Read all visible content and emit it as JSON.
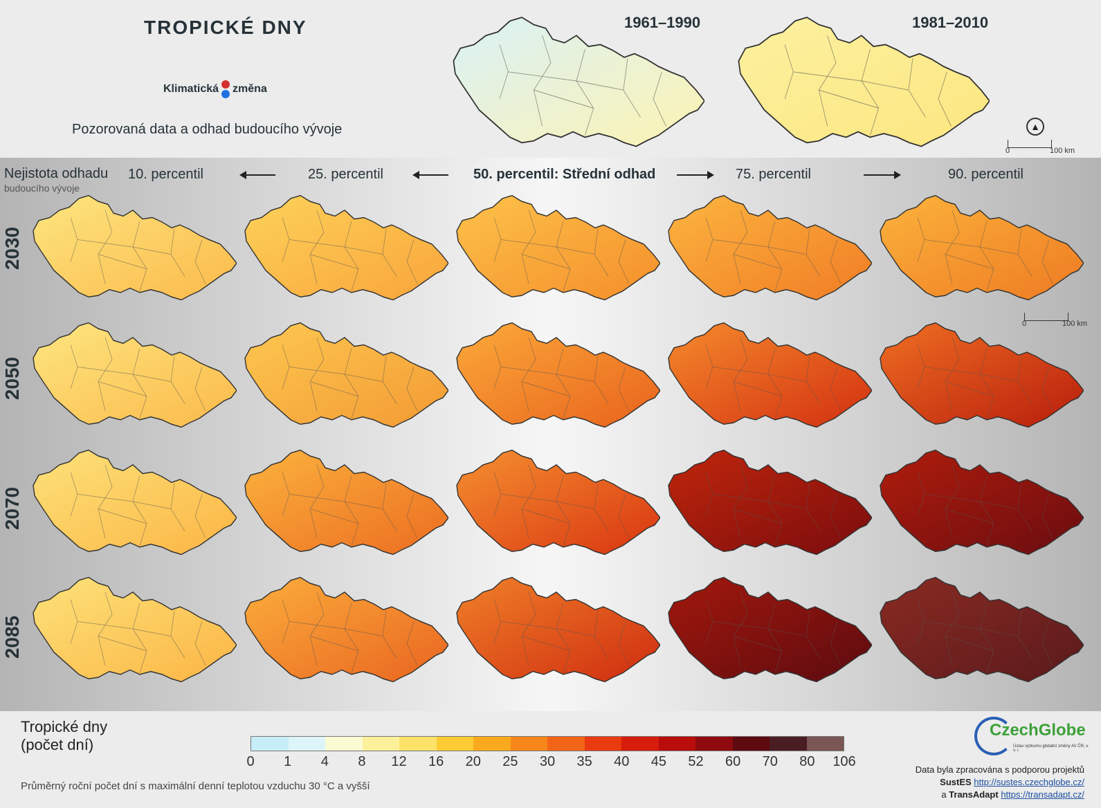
{
  "header": {
    "title": "TROPICKÉ DNY",
    "logo_left": "Klimatická",
    "logo_right": "změna",
    "subtitle": "Pozorovaná data a odhad budoucího vývoje"
  },
  "observed": {
    "period_1": "1961–1990",
    "period_2": "1981–2010",
    "scale_zero": "0",
    "scale_km": "100 km"
  },
  "uncertainty": {
    "label": "Nejistota odhadu",
    "sublabel": "budoucího vývoje",
    "percentiles": [
      "10. percentil",
      "25. percentil",
      "50. percentil: Střední odhad",
      "75. percentil",
      "90. percentil"
    ],
    "scale_zero": "0",
    "scale_km": "100 km"
  },
  "years": [
    "2030",
    "2050",
    "2070",
    "2085"
  ],
  "legend": {
    "title_line1": "Tropické dny",
    "title_line2": "(počet dní)",
    "ticks": [
      "0",
      "1",
      "4",
      "8",
      "12",
      "16",
      "20",
      "25",
      "30",
      "35",
      "40",
      "45",
      "52",
      "60",
      "70",
      "80",
      "106"
    ],
    "colors": [
      "#c7eef8",
      "#ddf5f8",
      "#fbfbd3",
      "#fdf09a",
      "#fde26a",
      "#fdcc35",
      "#fbaa1e",
      "#f7871a",
      "#f26418",
      "#e93a10",
      "#d61d0b",
      "#b80d0b",
      "#8e0a0f",
      "#5e0a10",
      "#4a1d22",
      "#7a5655"
    ],
    "note": "Průměrný roční počet dní s maximální denní teplotou vzduchu 30 °C a vyšší"
  },
  "credits": {
    "org": "CzechGlobe",
    "org_sub": "Ústav výzkumu globální změny AV ČR, v. v. i.",
    "line1": "Data byla zpracována s podporou projektů",
    "p1_name": "SustES",
    "p1_url": "http://sustes.czechglobe.cz/",
    "p2_prefix": "a",
    "p2_name": "TransAdapt",
    "p2_url": "https://transadapt.cz/"
  },
  "map_shading": {
    "observed": [
      [
        "#d9f2f7",
        "#fdf3b2"
      ],
      [
        "#fbf1a0",
        "#fde680"
      ]
    ],
    "grid": [
      [
        [
          "#fde680",
          "#fbb94a"
        ],
        [
          "#fdd25a",
          "#f9a43a"
        ],
        [
          "#fdc24a",
          "#f48e2a"
        ],
        [
          "#fcb540",
          "#f07c24"
        ],
        [
          "#fbb33c",
          "#ee7a22"
        ]
      ],
      [
        [
          "#fde680",
          "#fbb94a"
        ],
        [
          "#fdc850",
          "#f39a34"
        ],
        [
          "#fbaa3a",
          "#e9621c"
        ],
        [
          "#f58a2c",
          "#d32f10"
        ],
        [
          "#ef6e22",
          "#b81d0c"
        ]
      ],
      [
        [
          "#fde27a",
          "#fbb544"
        ],
        [
          "#fbb33e",
          "#ec6c20"
        ],
        [
          "#f59030",
          "#d93410"
        ],
        [
          "#c0260c",
          "#7a0c0d"
        ],
        [
          "#b01d0c",
          "#6a0c10"
        ]
      ],
      [
        [
          "#fde27a",
          "#fbb544"
        ],
        [
          "#fbae3c",
          "#e96420"
        ],
        [
          "#f08028",
          "#cf2c10"
        ],
        [
          "#a3180c",
          "#5c0b10"
        ],
        [
          "#8a2a22",
          "#5a1a1c"
        ]
      ]
    ]
  }
}
